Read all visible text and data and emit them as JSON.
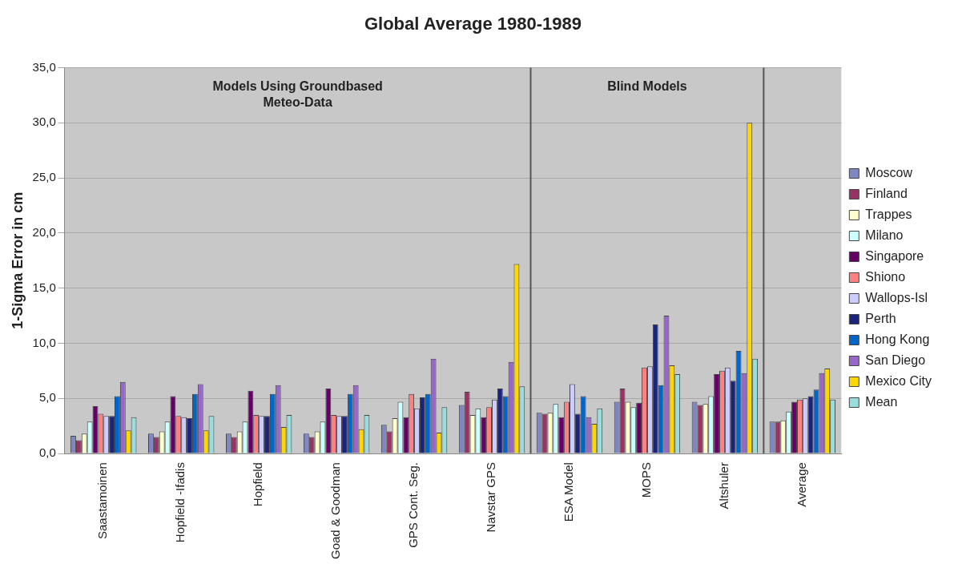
{
  "chart_data": {
    "type": "bar",
    "title": "Global Average 1980-1989",
    "ylabel": "1-Sigma Error in cm",
    "categories": [
      "Saastamoinen",
      "Hopfield -Ifadis",
      "Hopfield",
      "Goad & Goodman",
      "GPS Cont. Seg.",
      "Navstar GPS",
      "ESA Model",
      "MOPS",
      "Altshuler",
      "Average"
    ],
    "series": [
      {
        "name": "Moscow",
        "color": "#7f86c4",
        "values": [
          1.6,
          1.8,
          1.8,
          1.8,
          2.6,
          4.4,
          3.7,
          4.7,
          4.7,
          2.9
        ]
      },
      {
        "name": "Finland",
        "color": "#993366",
        "values": [
          1.2,
          1.5,
          1.5,
          1.5,
          2.0,
          5.6,
          3.6,
          5.9,
          4.4,
          2.9
        ]
      },
      {
        "name": "Trappes",
        "color": "#ffffcc",
        "values": [
          1.8,
          2.0,
          2.0,
          2.0,
          3.2,
          3.5,
          3.7,
          4.7,
          4.5,
          3.0
        ]
      },
      {
        "name": "Milano",
        "color": "#ccffff",
        "values": [
          2.9,
          2.9,
          2.9,
          2.9,
          4.7,
          4.1,
          4.5,
          4.2,
          5.2,
          3.8
        ]
      },
      {
        "name": "Singapore",
        "color": "#660066",
        "values": [
          4.3,
          5.2,
          5.7,
          5.9,
          3.3,
          3.3,
          3.3,
          4.6,
          7.2,
          4.7
        ]
      },
      {
        "name": "Shiono",
        "color": "#ff8080",
        "values": [
          3.6,
          3.4,
          3.5,
          3.5,
          5.4,
          4.2,
          4.7,
          7.8,
          7.5,
          4.9
        ]
      },
      {
        "name": "Wallops-Isl",
        "color": "#ccccff",
        "values": [
          3.4,
          3.3,
          3.4,
          3.4,
          4.1,
          4.9,
          6.3,
          7.9,
          7.8,
          5.0
        ]
      },
      {
        "name": "Perth",
        "color": "#1a237e",
        "values": [
          3.4,
          3.2,
          3.4,
          3.4,
          5.1,
          5.9,
          3.6,
          11.7,
          6.6,
          5.2
        ]
      },
      {
        "name": "Hong Kong",
        "color": "#0066cc",
        "values": [
          5.2,
          5.4,
          5.4,
          5.4,
          5.4,
          5.2,
          5.2,
          6.2,
          9.3,
          5.8
        ]
      },
      {
        "name": "San Diego",
        "color": "#9966cc",
        "values": [
          6.5,
          6.3,
          6.2,
          6.2,
          8.6,
          8.3,
          3.3,
          12.5,
          7.3,
          7.3
        ]
      },
      {
        "name": "Mexico City",
        "color": "#ffd700",
        "values": [
          2.1,
          2.1,
          2.4,
          2.2,
          1.9,
          17.2,
          2.7,
          8.0,
          30.0,
          7.7
        ]
      },
      {
        "name": "Mean",
        "color": "#99dddd",
        "values": [
          3.3,
          3.4,
          3.5,
          3.5,
          4.2,
          6.1,
          4.1,
          7.2,
          8.6,
          4.9
        ]
      }
    ],
    "ylim": [
      0,
      35
    ],
    "yticks": [
      {
        "value": 0,
        "label": "0,0"
      },
      {
        "value": 5,
        "label": "5,0"
      },
      {
        "value": 10,
        "label": "10,0"
      },
      {
        "value": 15,
        "label": "15,0"
      },
      {
        "value": 20,
        "label": "20,0"
      },
      {
        "value": 25,
        "label": "25,0"
      },
      {
        "value": 30,
        "label": "30,0"
      },
      {
        "value": 35,
        "label": "35,0"
      }
    ],
    "grid": "y",
    "legend": "right",
    "annotations": [
      "Models Using Groundbased\nMeteo-Data",
      "Blind Models"
    ]
  }
}
